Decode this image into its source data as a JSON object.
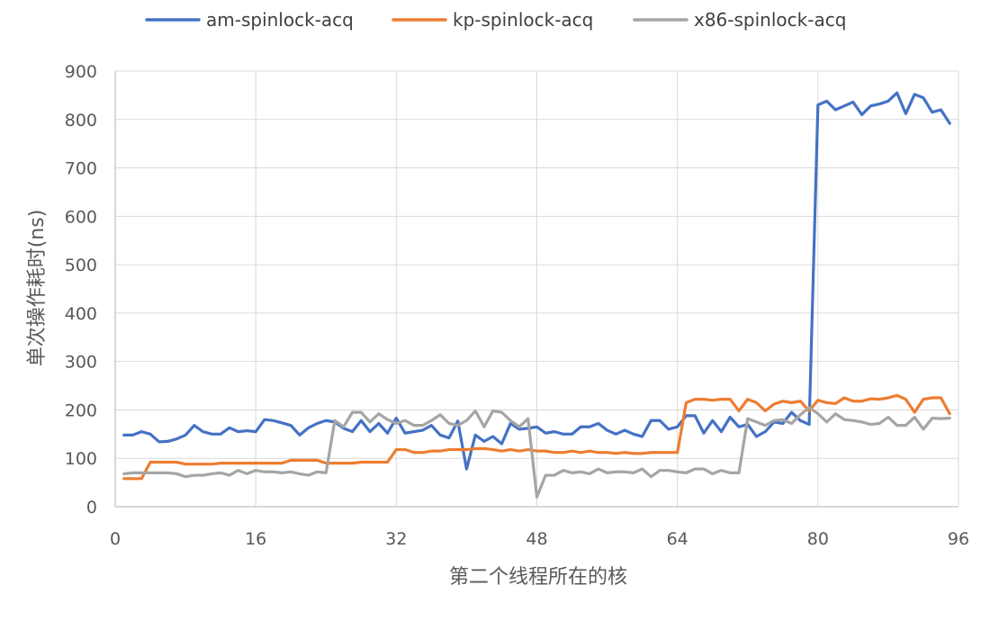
{
  "chart_data": {
    "type": "line",
    "title": "",
    "xlabel": "第二个线程所在的核",
    "ylabel": "单次操作耗时(ns)",
    "xlim": [
      0,
      96
    ],
    "ylim": [
      0,
      900
    ],
    "xticks": [
      0,
      16,
      32,
      48,
      64,
      80,
      96
    ],
    "yticks": [
      0,
      100,
      200,
      300,
      400,
      500,
      600,
      700,
      800,
      900
    ],
    "grid": true,
    "legend_position": "top",
    "x": [
      1,
      2,
      3,
      4,
      5,
      6,
      7,
      8,
      9,
      10,
      11,
      12,
      13,
      14,
      15,
      16,
      17,
      18,
      19,
      20,
      21,
      22,
      23,
      24,
      25,
      26,
      27,
      28,
      29,
      30,
      31,
      32,
      33,
      34,
      35,
      36,
      37,
      38,
      39,
      40,
      41,
      42,
      43,
      44,
      45,
      46,
      47,
      48,
      49,
      50,
      51,
      52,
      53,
      54,
      55,
      56,
      57,
      58,
      59,
      60,
      61,
      62,
      63,
      64,
      65,
      66,
      67,
      68,
      69,
      70,
      71,
      72,
      73,
      74,
      75,
      76,
      77,
      78,
      79,
      80,
      81,
      82,
      83,
      84,
      85,
      86,
      87,
      88,
      89,
      90,
      91,
      92,
      93,
      94,
      95
    ],
    "series": [
      {
        "name": "am-spinlock-acq",
        "color": "#4472c4",
        "values": [
          148,
          148,
          155,
          150,
          134,
          135,
          140,
          148,
          168,
          155,
          150,
          150,
          163,
          155,
          157,
          155,
          180,
          178,
          173,
          168,
          148,
          163,
          172,
          178,
          175,
          162,
          155,
          178,
          155,
          172,
          152,
          183,
          152,
          155,
          158,
          168,
          148,
          142,
          177,
          78,
          148,
          135,
          145,
          130,
          172,
          160,
          162,
          165,
          152,
          155,
          150,
          150,
          165,
          165,
          172,
          158,
          150,
          158,
          150,
          145,
          178,
          178,
          160,
          165,
          188,
          188,
          152,
          178,
          155,
          185,
          165,
          170,
          145,
          155,
          175,
          172,
          195,
          178,
          170,
          830,
          838,
          820,
          828,
          836,
          810,
          828,
          832,
          838,
          855,
          812,
          852,
          845,
          815,
          820,
          792
        ]
      },
      {
        "name": "kp-spinlock-acq",
        "color": "#ed7d31",
        "values": [
          58,
          58,
          58,
          92,
          92,
          92,
          92,
          88,
          88,
          88,
          88,
          90,
          90,
          90,
          90,
          90,
          90,
          90,
          90,
          96,
          96,
          96,
          96,
          90,
          90,
          90,
          90,
          92,
          92,
          92,
          92,
          118,
          118,
          112,
          112,
          115,
          115,
          118,
          118,
          118,
          120,
          120,
          118,
          115,
          118,
          115,
          118,
          115,
          115,
          112,
          112,
          115,
          112,
          115,
          112,
          112,
          110,
          112,
          110,
          110,
          112,
          112,
          112,
          112,
          215,
          222,
          222,
          220,
          222,
          222,
          198,
          222,
          215,
          198,
          212,
          218,
          215,
          218,
          198,
          220,
          215,
          213,
          225,
          218,
          218,
          223,
          222,
          225,
          230,
          222,
          195,
          222,
          225,
          225,
          192
        ]
      },
      {
        "name": "x86-spinlock-acq",
        "color": "#a5a5a5",
        "values": [
          68,
          70,
          70,
          70,
          70,
          70,
          68,
          62,
          65,
          65,
          68,
          70,
          65,
          75,
          68,
          75,
          72,
          72,
          70,
          72,
          68,
          65,
          72,
          70,
          178,
          165,
          195,
          195,
          175,
          192,
          180,
          172,
          178,
          168,
          168,
          178,
          190,
          172,
          168,
          178,
          198,
          165,
          198,
          195,
          178,
          165,
          182,
          20,
          65,
          65,
          75,
          70,
          72,
          68,
          78,
          70,
          72,
          72,
          70,
          78,
          62,
          75,
          75,
          72,
          70,
          78,
          78,
          68,
          75,
          70,
          70,
          182,
          175,
          168,
          178,
          180,
          172,
          190,
          205,
          192,
          175,
          192,
          180,
          178,
          175,
          170,
          172,
          185,
          168,
          168,
          185,
          160,
          183,
          182,
          183
        ]
      }
    ]
  }
}
